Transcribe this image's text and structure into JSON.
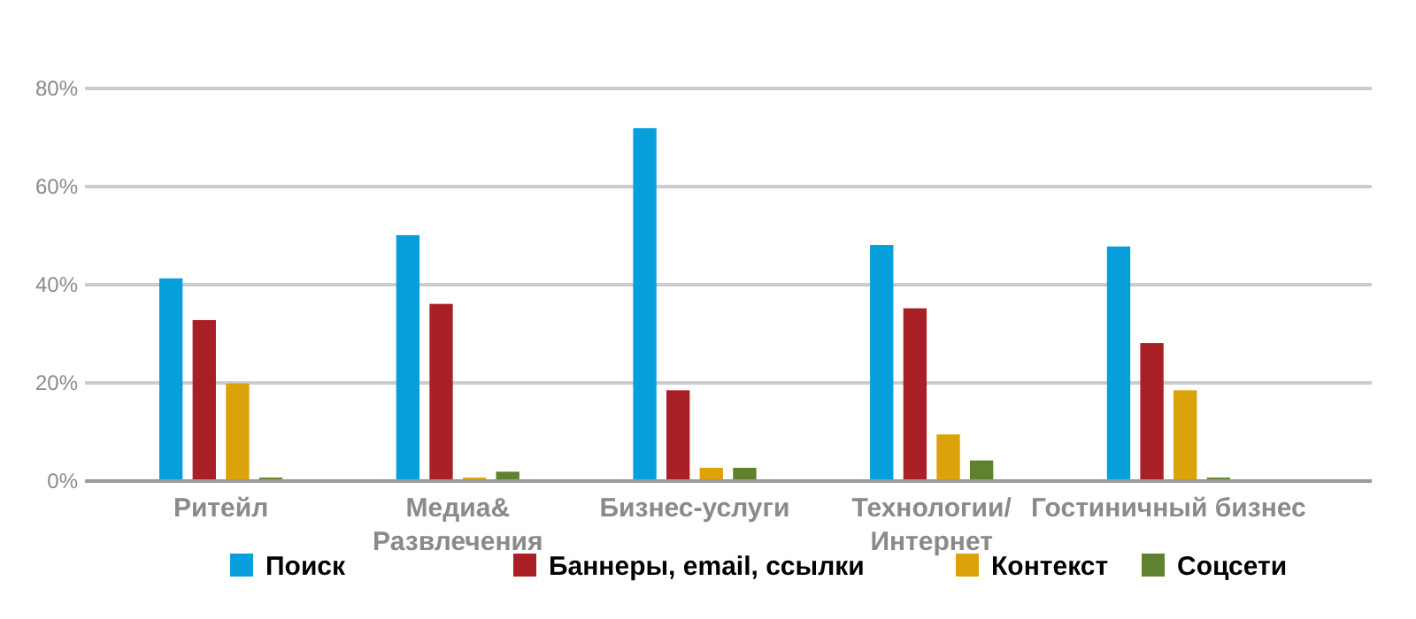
{
  "chart_data": {
    "type": "bar",
    "categories": [
      "Ритейл",
      "Медиа& Развлечения",
      "Бизнес-услуги",
      "Технологии/ Интернет",
      "Гостиничный бизнес"
    ],
    "series": [
      {
        "name": "Поиск",
        "color": "#069fdb",
        "values": [
          41.3,
          50.1,
          71.9,
          48.1,
          47.8
        ]
      },
      {
        "name": "Баннеры, email, ссылки",
        "color": "#a82026",
        "values": [
          32.8,
          36.1,
          18.5,
          35.2,
          28.1
        ]
      },
      {
        "name": "Контекст",
        "color": "#dca20a",
        "values": [
          19.9,
          0.7,
          2.7,
          9.5,
          18.5
        ]
      },
      {
        "name": "Соцсети",
        "color": "#5f822e",
        "values": [
          0.7,
          1.9,
          2.7,
          4.2,
          0.7
        ]
      }
    ],
    "ylim": [
      0,
      80
    ],
    "yticks": [
      {
        "value": 0,
        "label": "0%"
      },
      {
        "value": 20,
        "label": "20%"
      },
      {
        "value": 40,
        "label": "40%"
      },
      {
        "value": 60,
        "label": "60%"
      },
      {
        "value": 80,
        "label": "80%"
      }
    ],
    "grid": "y",
    "legend": "bottom"
  }
}
